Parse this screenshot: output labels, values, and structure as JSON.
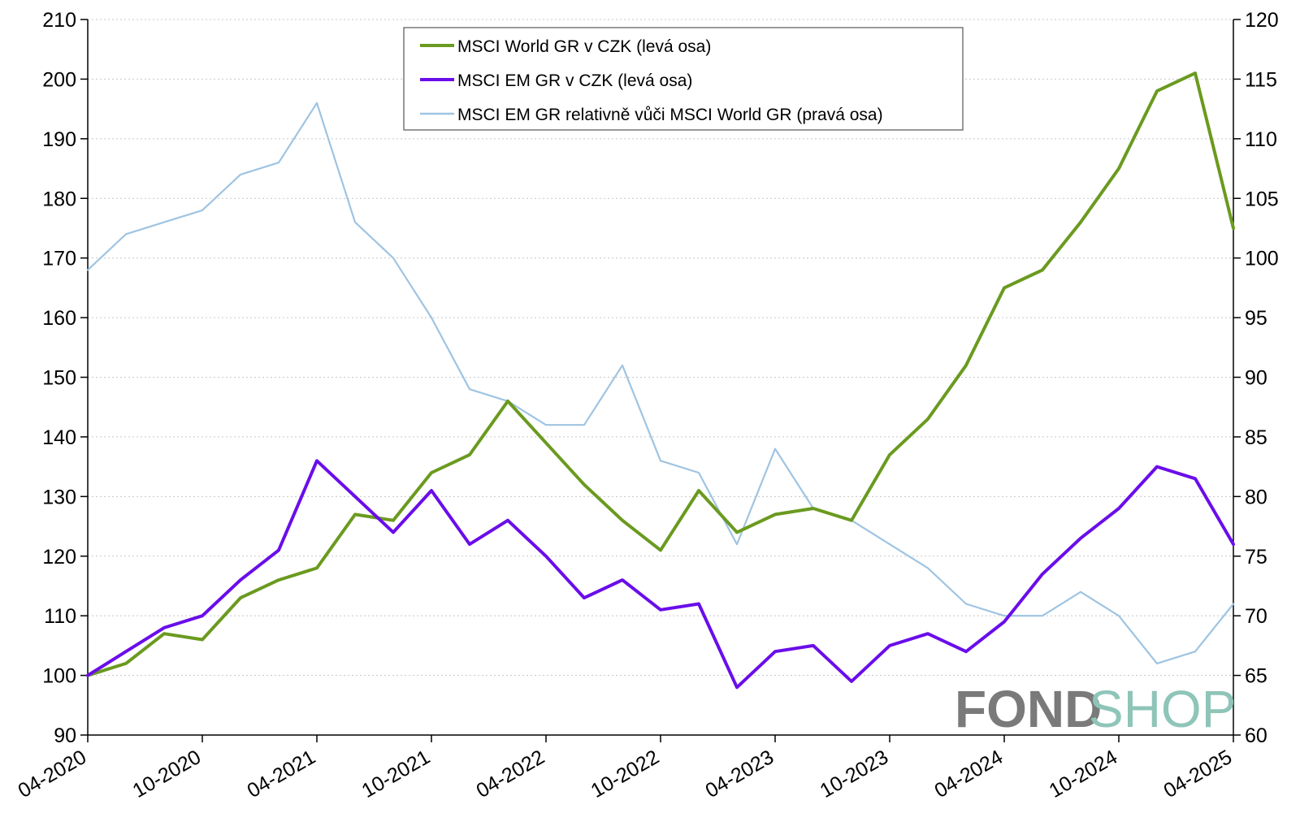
{
  "chart_data": {
    "type": "line",
    "title": "",
    "xlabel": "",
    "ylabel": "",
    "grid": true,
    "legend_position": "top-center",
    "x_ticks": [
      "04-2020",
      "10-2020",
      "04-2021",
      "10-2021",
      "04-2022",
      "10-2022",
      "04-2023",
      "10-2023",
      "04-2024",
      "10-2024",
      "04-2025"
    ],
    "ylim_left": [
      90,
      210
    ],
    "ylim_right": [
      60,
      120
    ],
    "y_ticks_left": [
      "90",
      "100",
      "110",
      "120",
      "130",
      "140",
      "150",
      "160",
      "170",
      "180",
      "190",
      "200",
      "210"
    ],
    "y_ticks_right": [
      "60",
      "65",
      "70",
      "75",
      "80",
      "85",
      "90",
      "95",
      "100",
      "105",
      "110",
      "115",
      "120"
    ],
    "x_months_from_start": [
      0,
      2,
      4,
      6,
      8,
      10,
      12,
      14,
      16,
      18,
      20,
      22,
      24,
      26,
      28,
      30,
      32,
      34,
      36,
      38,
      40,
      42,
      44,
      46,
      48,
      50,
      52,
      54,
      56,
      58,
      60
    ],
    "series": [
      {
        "name": "MSCI World GR v CZK (levá osa)",
        "axis": "left",
        "color": "#6a9a1f",
        "values": [
          100,
          102,
          107,
          106,
          113,
          116,
          118,
          127,
          126,
          134,
          137,
          146,
          139,
          132,
          126,
          121,
          131,
          124,
          127,
          128,
          126,
          137,
          143,
          152,
          165,
          168,
          176,
          185,
          198,
          201,
          175
        ]
      },
      {
        "name": "MSCI EM GR v CZK (levá osa)",
        "axis": "left",
        "color": "#6a0dea",
        "values": [
          100,
          104,
          108,
          110,
          116,
          121,
          136,
          130,
          124,
          131,
          122,
          126,
          120,
          113,
          116,
          111,
          112,
          98,
          104,
          105,
          99,
          105,
          107,
          104,
          109,
          117,
          123,
          128,
          135,
          133,
          122
        ]
      },
      {
        "name": "MSCI EM GR relativně vůči MSCI World GR (pravá osa)",
        "axis": "right",
        "color": "#9fc4e2",
        "values": [
          99,
          102,
          103,
          104,
          107,
          108,
          113,
          103,
          100,
          95,
          89,
          88,
          86,
          86,
          91,
          83,
          82,
          76,
          84,
          79,
          78,
          76,
          74,
          71,
          70,
          70,
          72,
          70,
          66,
          67,
          71
        ]
      }
    ]
  },
  "logo": {
    "part1": "FOND",
    "part2": "SHOP"
  }
}
